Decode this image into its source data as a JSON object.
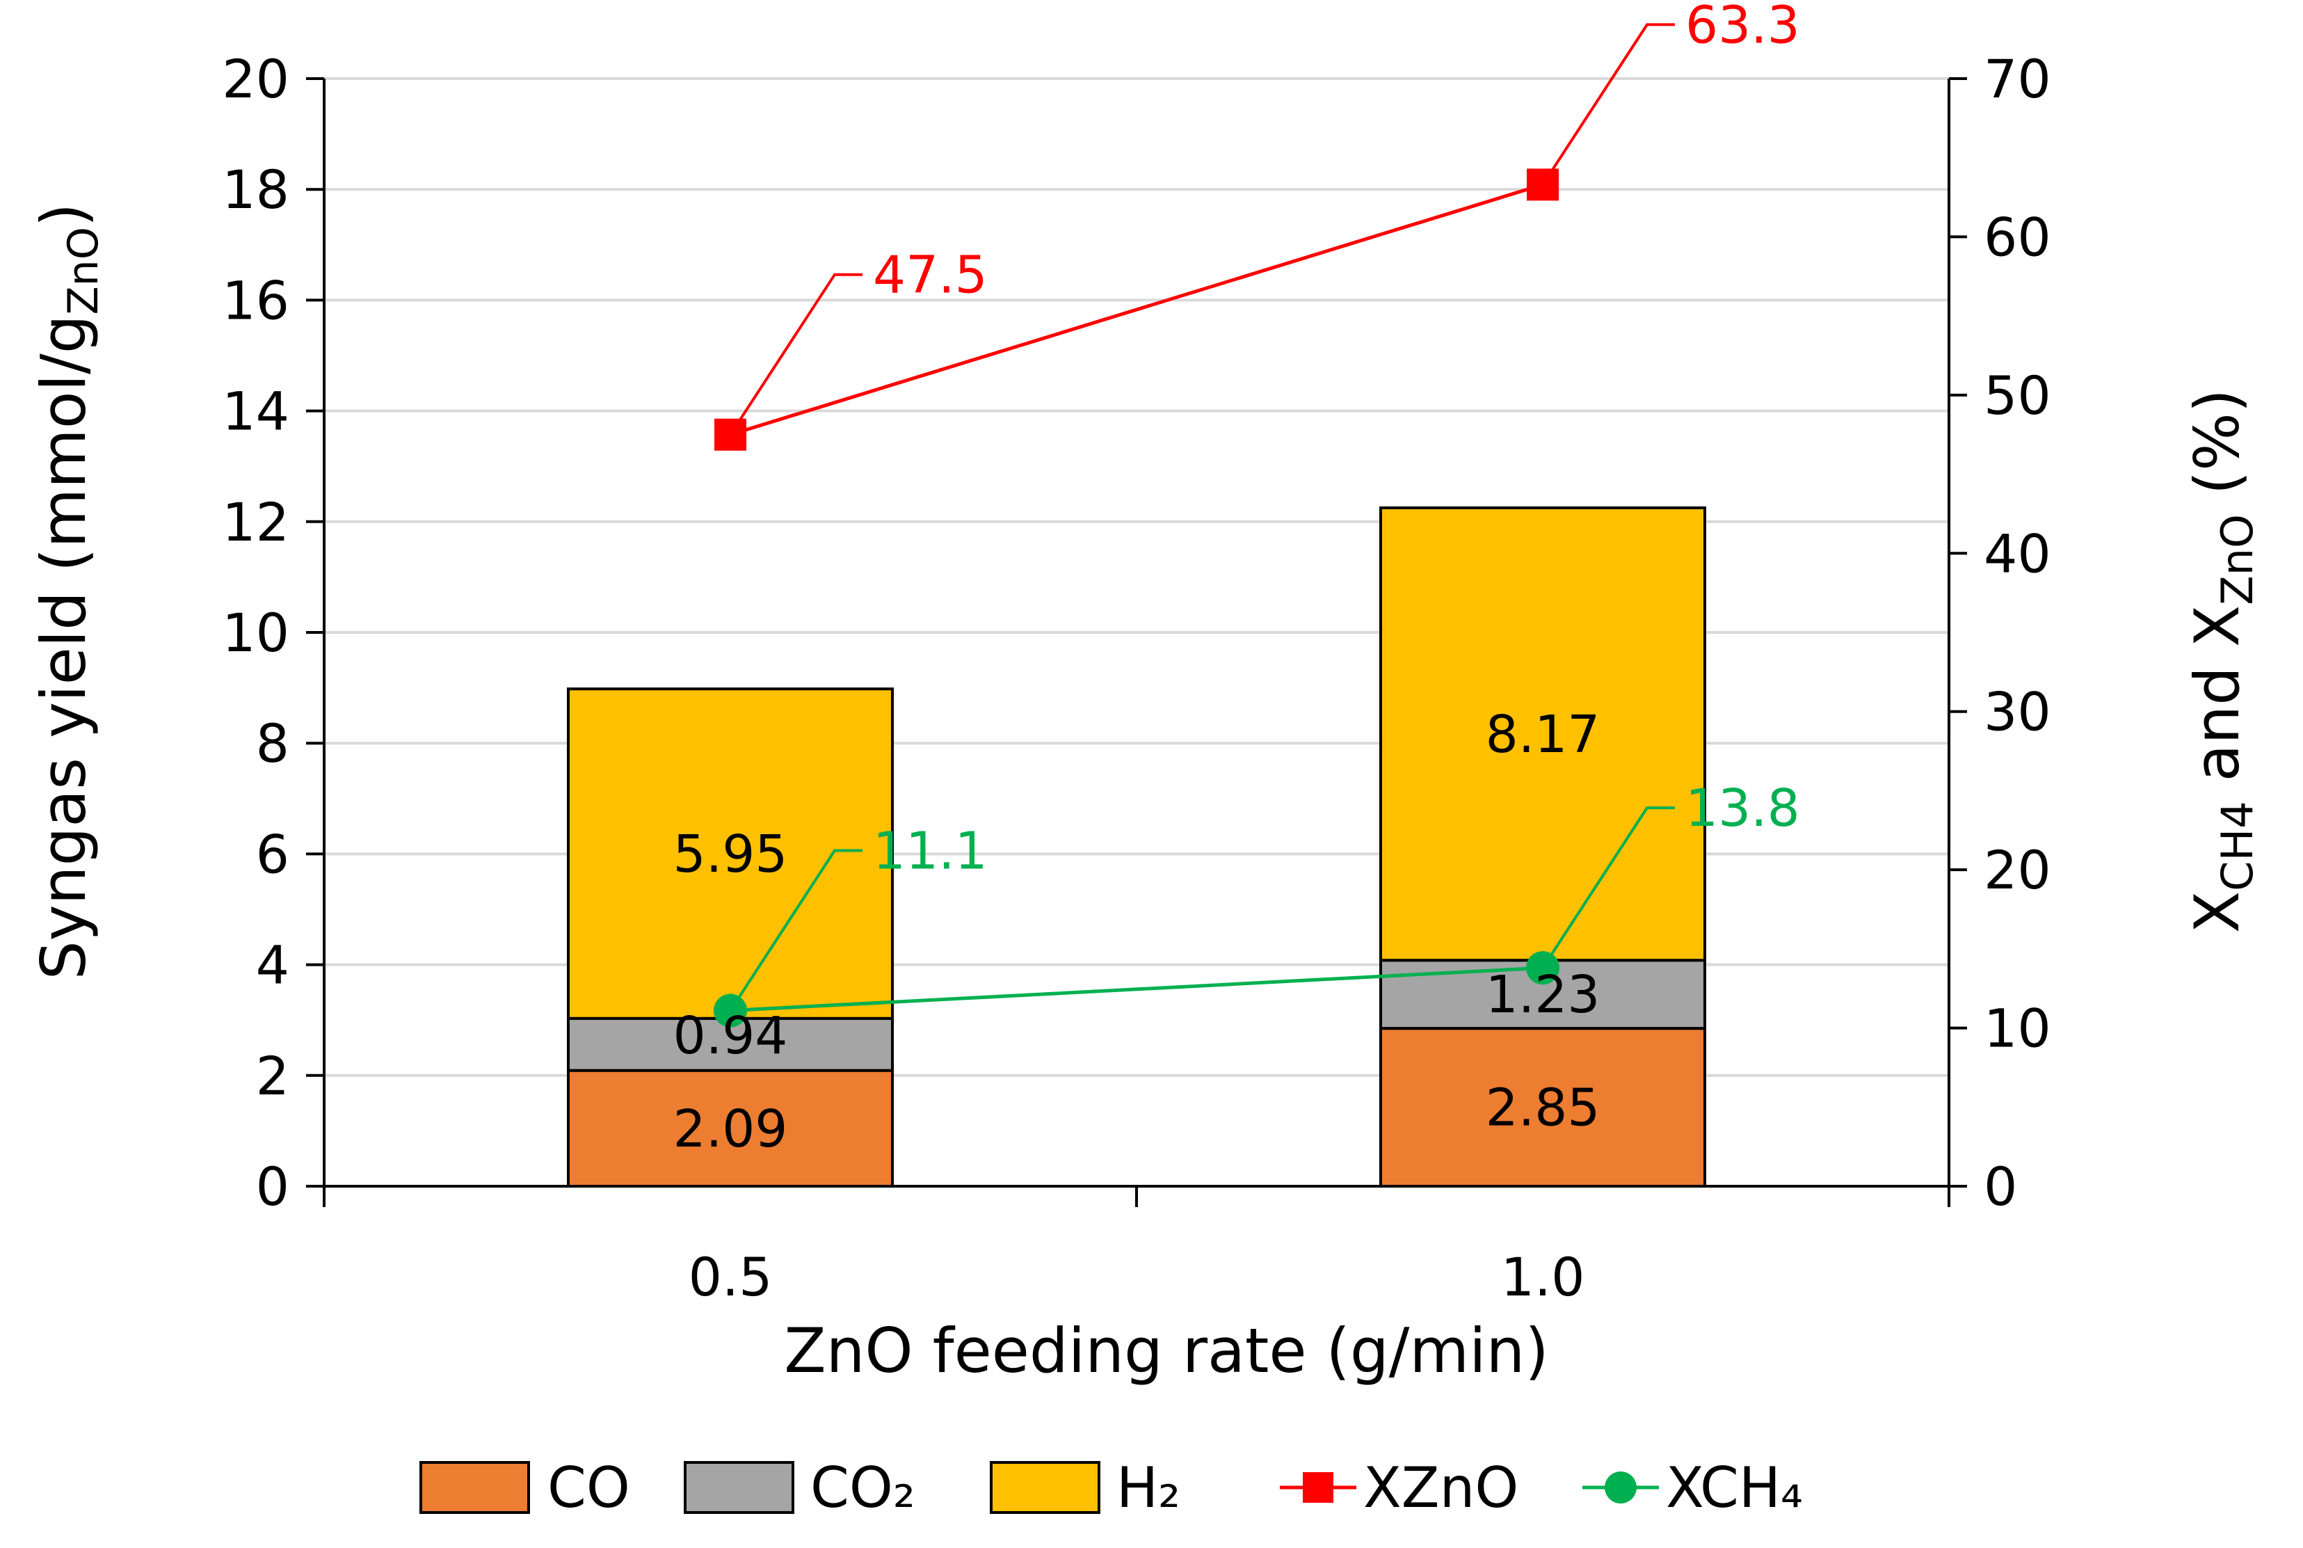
{
  "colors": {
    "CO": "#ED7D31",
    "CO2": "#A5A5A5",
    "H2": "#FFC000",
    "XZnO": "#FF0000",
    "XCH4": "#00B050",
    "grid": "#D9D9D9",
    "axis": "#000000"
  },
  "chart_data": {
    "type": "bar",
    "stacked": true,
    "categories": [
      "0.5",
      "1.0"
    ],
    "series": [
      {
        "name": "CO",
        "key": "CO",
        "kind": "bar",
        "axis": "left",
        "values": [
          2.09,
          2.85
        ]
      },
      {
        "name": "CO₂",
        "key": "CO2",
        "kind": "bar",
        "axis": "left",
        "values": [
          0.94,
          1.23
        ]
      },
      {
        "name": "H₂",
        "key": "H2",
        "kind": "bar",
        "axis": "left",
        "values": [
          5.95,
          8.17
        ]
      },
      {
        "name": "XZnO",
        "key": "XZnO",
        "kind": "line",
        "marker": "square",
        "axis": "right",
        "values": [
          47.5,
          63.3
        ]
      },
      {
        "name": "XCH₄",
        "key": "XCH4",
        "kind": "line",
        "marker": "circle",
        "axis": "right",
        "values": [
          11.1,
          13.8
        ]
      }
    ],
    "xlabel": "ZnO feeding rate (g/min)",
    "ylabel": {
      "main": "Syngas yield (mmol/g",
      "sub": "ZnO",
      "tail": ")"
    },
    "y2label": {
      "p1": "X",
      "s1": "CH4",
      "p2": " and X",
      "s2": "ZnO",
      "p3": " (%)"
    },
    "ylim": [
      0,
      20
    ],
    "yticks": [
      0,
      2,
      4,
      6,
      8,
      10,
      12,
      14,
      16,
      18,
      20
    ],
    "y2lim": [
      0,
      70
    ],
    "y2ticks": [
      0,
      10,
      20,
      30,
      40,
      50,
      60,
      70
    ],
    "grid": true,
    "legend_position": "bottom"
  }
}
